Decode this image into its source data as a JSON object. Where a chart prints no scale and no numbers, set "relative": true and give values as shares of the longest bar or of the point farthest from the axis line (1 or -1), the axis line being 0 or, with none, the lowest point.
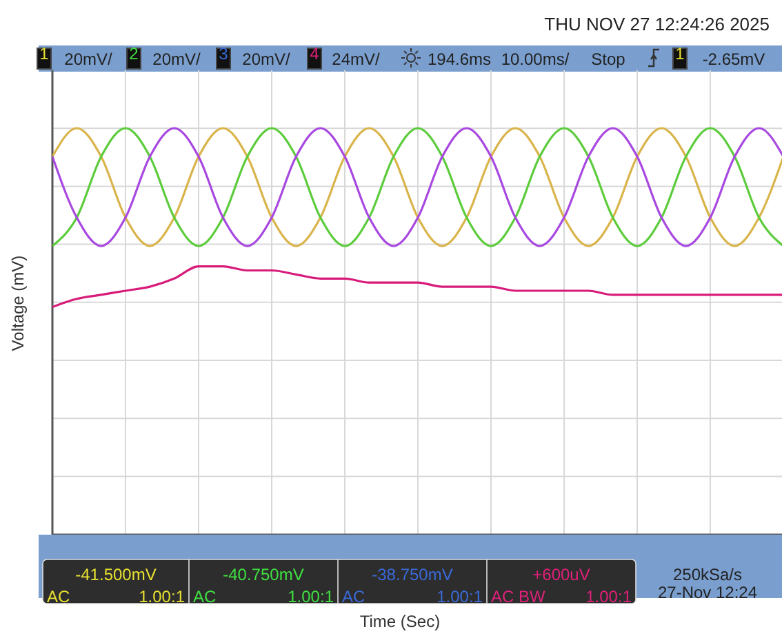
{
  "chart_data": {
    "type": "line",
    "relative": true,
    "ylabel": "Voltage (mV)",
    "grid": true,
    "line_style": "solid",
    "categories": [
      null,
      null,
      null,
      null,
      null,
      null,
      null,
      null,
      null,
      null,
      null,
      null,
      null,
      null,
      null,
      null,
      null,
      null,
      null,
      null,
      null,
      null,
      null,
      null,
      null,
      null,
      null,
      null,
      null,
      null,
      null
    ],
    "series": [
      {
        "color": "#d9b44a",
        "values": [
          0.93,
          1,
          0.93,
          0.78,
          0.71,
          0.78,
          0.93,
          1,
          0.93,
          0.78,
          0.71,
          0.78,
          0.93,
          1,
          0.93,
          0.78,
          0.71,
          0.78,
          0.93,
          1,
          0.93,
          0.78,
          0.71,
          0.78,
          0.93,
          1,
          0.93,
          0.78,
          0.71,
          0.78,
          0.93
        ]
      },
      {
        "color": "#5ccc3c",
        "values": [
          0.71,
          0.78,
          0.93,
          1,
          0.93,
          0.78,
          0.71,
          0.78,
          0.93,
          1,
          0.93,
          0.78,
          0.71,
          0.78,
          0.93,
          1,
          0.93,
          0.78,
          0.71,
          0.78,
          0.93,
          1,
          0.93,
          0.78,
          0.71,
          0.78,
          0.93,
          1,
          0.93,
          0.78,
          0.71
        ]
      },
      {
        "color": "#a848e0",
        "values": [
          0.93,
          0.78,
          0.71,
          0.78,
          0.93,
          1,
          0.93,
          0.78,
          0.71,
          0.78,
          0.93,
          1,
          0.93,
          0.78,
          0.71,
          0.78,
          0.93,
          1,
          0.93,
          0.78,
          0.71,
          0.78,
          0.93,
          1,
          0.93,
          0.78,
          0.71,
          0.78,
          0.93,
          1,
          0.93
        ]
      },
      {
        "color": "#d81b7a",
        "values": [
          0.56,
          0.58,
          0.59,
          0.6,
          0.61,
          0.63,
          0.66,
          0.66,
          0.65,
          0.65,
          0.64,
          0.63,
          0.63,
          0.62,
          0.62,
          0.62,
          0.61,
          0.61,
          0.61,
          0.6,
          0.6,
          0.6,
          0.6,
          0.59,
          0.59,
          0.59,
          0.59,
          0.59,
          0.59,
          0.59,
          0.59
        ]
      }
    ],
    "annotations": [
      "THU NOV 27 12:24:26 2025",
      "1",
      "20mV/",
      "2",
      "20mV/",
      "3",
      "20mV/",
      "4",
      "24mV/",
      "194.6ms",
      "10.00ms/",
      "Stop",
      "1",
      "-2.65mV",
      "-41.500mV",
      "AC",
      "1.00:1",
      "-40.750mV",
      "AC",
      "1.00:1",
      "-38.750mV",
      "AC",
      "1.00:1",
      "+600uV",
      "AC BW",
      "1.00:1",
      "250kSa/s",
      "27-Nov 12:24",
      "Time (Sec)"
    ]
  }
}
